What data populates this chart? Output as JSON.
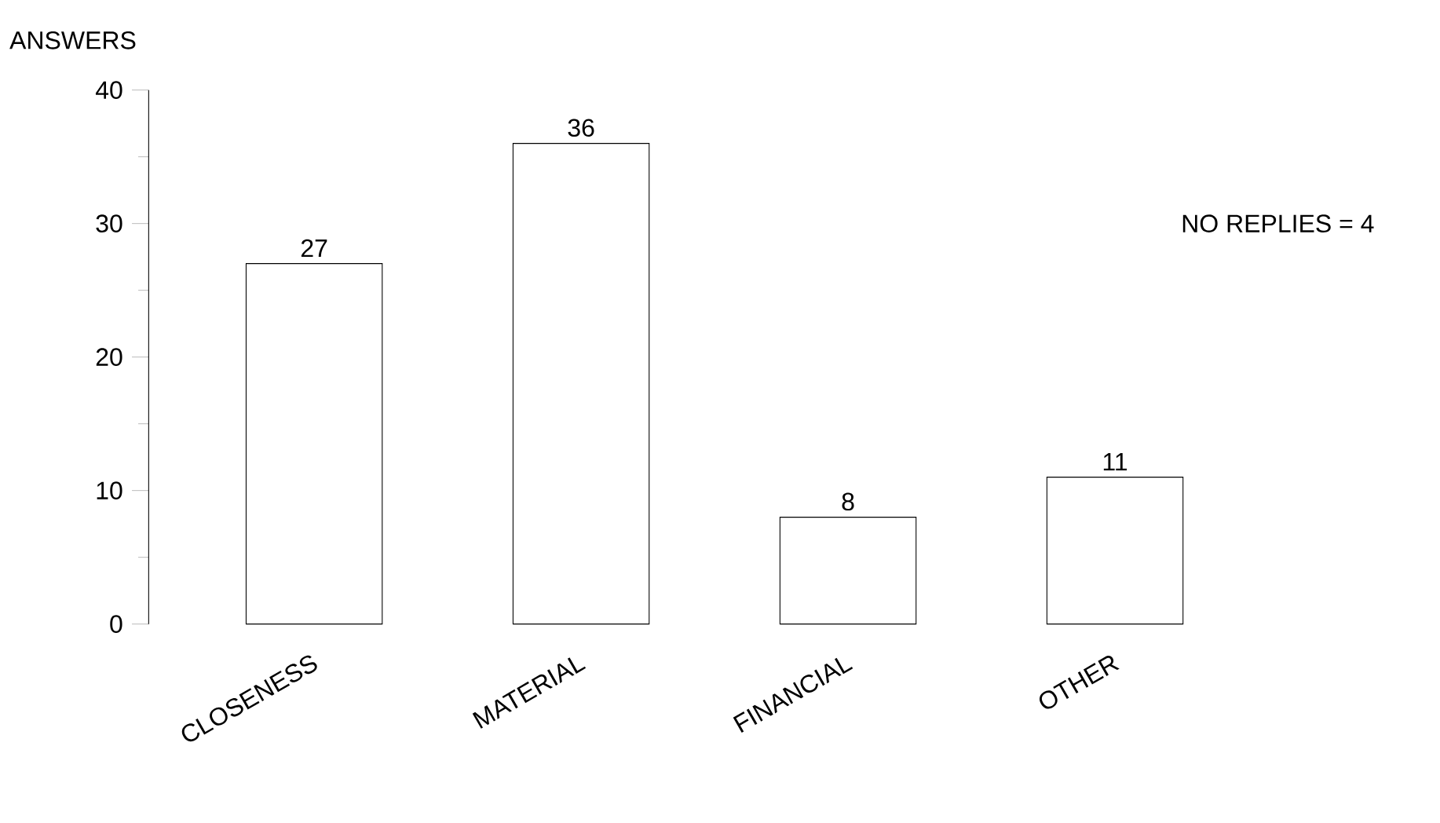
{
  "chart_data": {
    "type": "bar",
    "ylabel": "ANSWERS",
    "categories": [
      "CLOSENESS",
      "MATERIAL",
      "FINANCIAL",
      "OTHER"
    ],
    "values": [
      27,
      36,
      8,
      11
    ],
    "color": "#ffffff",
    "ylim": [
      0,
      40
    ],
    "yticks": [
      0,
      10,
      20,
      30,
      40
    ],
    "data_labels": true,
    "annotations": [
      "NO REPLIES = 4"
    ]
  }
}
